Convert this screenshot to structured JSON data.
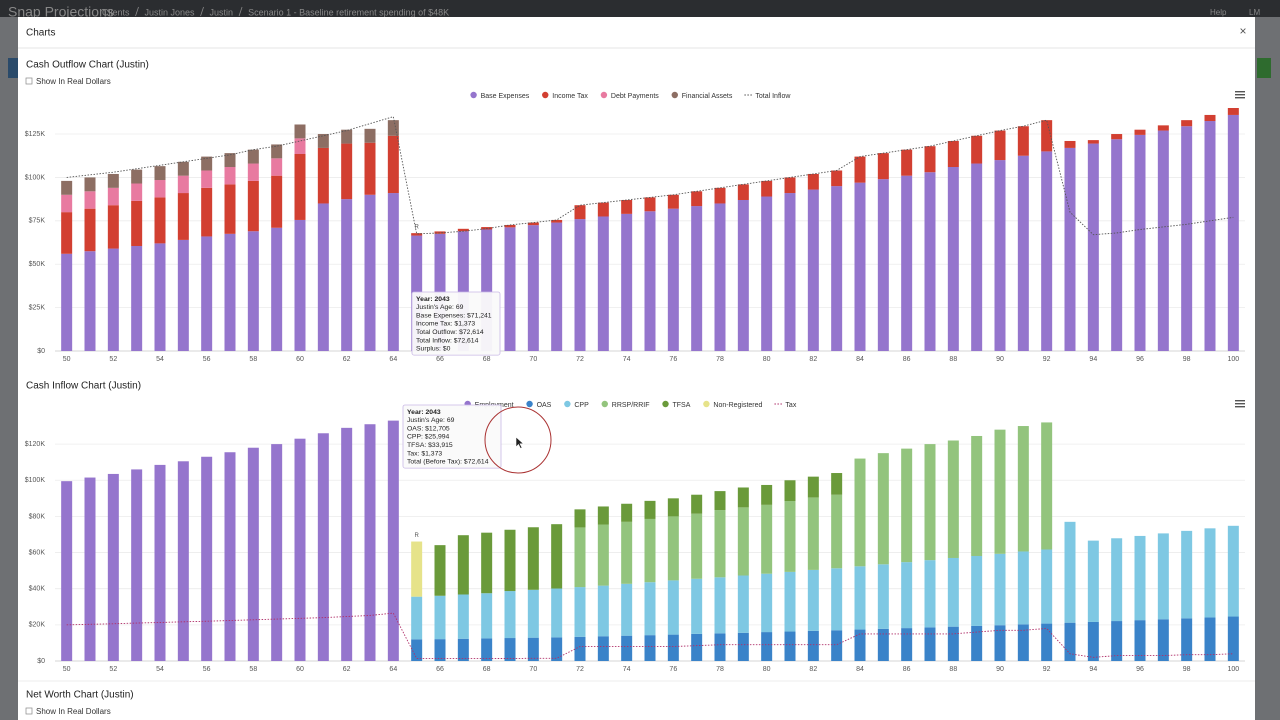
{
  "header": {
    "brand": "Snap Projections",
    "breadcrumb": [
      "Clients",
      "Justin Jones",
      "Justin",
      "Scenario 1 - Baseline retirement spending of $48K"
    ],
    "help": "Help",
    "user": "LM"
  },
  "modal": {
    "title": "Charts",
    "close": "×",
    "net_worth_title": "Net Worth Chart (Justin)",
    "net_worth_checkbox": "Show In Real Dollars"
  },
  "chart_data": [
    {
      "type": "bar",
      "stacked": true,
      "title": "Cash Outflow Chart (Justin)",
      "checkbox_label": "Show In Real Dollars",
      "categories": [
        50,
        null,
        52,
        null,
        54,
        null,
        56,
        null,
        58,
        null,
        60,
        null,
        62,
        null,
        64,
        null,
        66,
        null,
        68,
        null,
        70,
        null,
        72,
        null,
        74,
        null,
        76,
        null,
        78,
        null,
        80,
        null,
        82,
        null,
        84,
        null,
        86,
        null,
        88,
        null,
        90,
        null,
        92,
        null,
        94,
        null,
        96,
        null,
        98,
        null,
        100
      ],
      "ylim": [
        0,
        140000
      ],
      "yticks": [
        {
          "value": 0,
          "label": "$0"
        },
        {
          "value": 25000,
          "label": "$25K"
        },
        {
          "value": 50000,
          "label": "$50K"
        },
        {
          "value": 75000,
          "label": "$75K"
        },
        {
          "value": 100000,
          "label": "$100K"
        },
        {
          "value": 125000,
          "label": "$125K"
        }
      ],
      "grid": true,
      "legend": "top",
      "annotations": [
        "R"
      ],
      "series": [
        {
          "name": "Base Expenses",
          "color": "#9575cd",
          "values": [
            56000,
            57500,
            59000,
            60500,
            62000,
            64000,
            66000,
            67500,
            69000,
            71000,
            75500,
            85000,
            87500,
            90000,
            91000,
            66500,
            67500,
            69000,
            70000,
            71241,
            72500,
            74000,
            76000,
            77500,
            79000,
            80500,
            82000,
            83500,
            85000,
            87000,
            89000,
            91000,
            93000,
            95000,
            97000,
            99000,
            101000,
            103000,
            106000,
            108000,
            110000,
            112500,
            115000,
            117000,
            119500,
            122000,
            124500,
            127000,
            129500,
            132500,
            136000
          ]
        },
        {
          "name": "Income Tax",
          "color": "#d23f31",
          "values": [
            24000,
            24500,
            25000,
            26000,
            26500,
            27000,
            28000,
            28500,
            29000,
            30000,
            38000,
            32000,
            32000,
            30000,
            33000,
            1400,
            1400,
            1400,
            1400,
            1373,
            1500,
            1500,
            8000,
            8000,
            8000,
            8000,
            8000,
            8500,
            9000,
            9000,
            9000,
            9000,
            9000,
            9000,
            15000,
            15000,
            15000,
            15000,
            15000,
            16000,
            17000,
            17000,
            18000,
            4000,
            2000,
            3000,
            3000,
            3000,
            3500,
            3500,
            4000
          ]
        },
        {
          "name": "Debt Payments",
          "color": "#e87aa0",
          "values": [
            10000,
            10000,
            10000,
            10000,
            10000,
            10000,
            10000,
            10000,
            10000,
            10000,
            9000,
            0,
            0,
            0,
            0,
            0,
            0,
            0,
            0,
            0,
            0,
            0,
            0,
            0,
            0,
            0,
            0,
            0,
            0,
            0,
            0,
            0,
            0,
            0,
            0,
            0,
            0,
            0,
            0,
            0,
            0,
            0,
            0,
            0,
            0,
            0,
            0,
            0,
            0,
            0,
            0
          ]
        },
        {
          "name": "Financial Assets",
          "color": "#8d6e63",
          "values": [
            8000,
            8000,
            8000,
            8000,
            8000,
            8000,
            8000,
            8000,
            8000,
            8000,
            8000,
            8000,
            8000,
            8000,
            9000,
            0,
            0,
            0,
            0,
            0,
            0,
            0,
            0,
            0,
            0,
            0,
            0,
            0,
            0,
            0,
            0,
            0,
            0,
            0,
            0,
            0,
            0,
            0,
            0,
            0,
            0,
            0,
            0,
            0,
            0,
            0,
            0,
            0,
            0,
            0,
            0
          ]
        },
        {
          "name": "Total Inflow",
          "color": "#555555",
          "type": "line",
          "values": [
            100000,
            101500,
            103000,
            105000,
            107000,
            109000,
            111000,
            113000,
            116000,
            118000,
            121000,
            124000,
            127000,
            131000,
            135000,
            67500,
            68000,
            69000,
            70500,
            72614,
            74000,
            75500,
            84000,
            85500,
            87000,
            88500,
            90000,
            92000,
            94000,
            96000,
            98000,
            100000,
            102000,
            104000,
            112000,
            114000,
            116000,
            118000,
            121000,
            124000,
            127000,
            129500,
            133000,
            80000,
            67000,
            68000,
            70000,
            71500,
            73000,
            75000,
            77000
          ]
        }
      ],
      "tooltip": [
        "Year: 2043",
        "Justin's Age: 69",
        "Base Expenses: $71,241",
        "Income Tax: $1,373",
        "Total Outflow: $72,614",
        "Total Inflow: $72,614",
        "Surplus: $0"
      ]
    },
    {
      "type": "bar",
      "stacked": true,
      "title": "Cash Inflow Chart (Justin)",
      "categories": [
        50,
        null,
        52,
        null,
        54,
        null,
        56,
        null,
        58,
        null,
        60,
        null,
        62,
        null,
        64,
        null,
        66,
        null,
        68,
        null,
        70,
        null,
        72,
        null,
        74,
        null,
        76,
        null,
        78,
        null,
        80,
        null,
        82,
        null,
        84,
        null,
        86,
        null,
        88,
        null,
        90,
        null,
        92,
        null,
        94,
        null,
        96,
        null,
        98,
        null,
        100
      ],
      "ylim": [
        0,
        135000
      ],
      "yticks": [
        {
          "value": 0,
          "label": "$0"
        },
        {
          "value": 20000,
          "label": "$20K"
        },
        {
          "value": 40000,
          "label": "$40K"
        },
        {
          "value": 60000,
          "label": "$60K"
        },
        {
          "value": 80000,
          "label": "$80K"
        },
        {
          "value": 100000,
          "label": "$100K"
        },
        {
          "value": 120000,
          "label": "$120K"
        }
      ],
      "grid": true,
      "legend": "top",
      "annotations": [
        "R"
      ],
      "series": [
        {
          "name": "Employment",
          "color": "#9575cd",
          "values": [
            99500,
            101500,
            103500,
            106000,
            108500,
            110500,
            113000,
            115500,
            118000,
            120000,
            123000,
            126000,
            129000,
            131000,
            133000,
            0,
            0,
            0,
            0,
            0,
            0,
            0,
            0,
            0,
            0,
            0,
            0,
            0,
            0,
            0,
            0,
            0,
            0,
            0,
            0,
            0,
            0,
            0,
            0,
            0,
            0,
            0,
            0,
            0,
            0,
            0,
            0,
            0,
            0,
            0,
            0
          ]
        },
        {
          "name": "OAS",
          "color": "#3a83c9",
          "values": [
            0,
            0,
            0,
            0,
            0,
            0,
            0,
            0,
            0,
            0,
            0,
            0,
            0,
            0,
            0,
            12000,
            12100,
            12300,
            12500,
            12705,
            12900,
            13100,
            13400,
            13700,
            14000,
            14300,
            14600,
            15000,
            15300,
            15600,
            16000,
            16300,
            16700,
            17000,
            17400,
            17800,
            18200,
            18600,
            19000,
            19400,
            19800,
            20300,
            20700,
            21200,
            21600,
            22100,
            22600,
            23100,
            23600,
            24100,
            24600
          ]
        },
        {
          "name": "CPP",
          "color": "#7ec8e3",
          "values": [
            0,
            0,
            0,
            0,
            0,
            0,
            0,
            0,
            0,
            0,
            0,
            0,
            0,
            0,
            0,
            23600,
            24000,
            24500,
            25000,
            25994,
            26500,
            27000,
            27500,
            28000,
            28700,
            29300,
            30000,
            30500,
            31000,
            31700,
            32300,
            33000,
            33700,
            34300,
            35000,
            35700,
            36500,
            37200,
            38000,
            38700,
            39500,
            40300,
            41000,
            55800,
            45000,
            45800,
            46600,
            47500,
            48400,
            49300,
            50200
          ]
        },
        {
          "name": "RRSP/RRIF",
          "color": "#93c47d",
          "values": [
            0,
            0,
            0,
            0,
            0,
            0,
            0,
            0,
            0,
            0,
            0,
            0,
            0,
            0,
            0,
            0,
            0,
            0,
            0,
            0,
            0,
            0,
            33000,
            33800,
            34300,
            35000,
            35400,
            36000,
            37200,
            37700,
            38100,
            39200,
            40100,
            40700,
            59600,
            61500,
            62800,
            64200,
            65000,
            66400,
            68700,
            69400,
            70300,
            0,
            0,
            0,
            0,
            0,
            0,
            0,
            0
          ]
        },
        {
          "name": "TFSA",
          "color": "#6a9a3a",
          "values": [
            0,
            0,
            0,
            0,
            0,
            0,
            0,
            0,
            0,
            0,
            0,
            0,
            0,
            0,
            0,
            0,
            28000,
            32800,
            33500,
            33915,
            34600,
            35600,
            10000,
            10000,
            10000,
            10000,
            10000,
            10500,
            10500,
            11000,
            11000,
            11500,
            11500,
            12000,
            0,
            0,
            0,
            0,
            0,
            0,
            0,
            0,
            0,
            0,
            0,
            0,
            0,
            0,
            0,
            0,
            0
          ]
        },
        {
          "name": "Non-Registered",
          "color": "#e6e38a",
          "values": [
            0,
            0,
            0,
            0,
            0,
            0,
            0,
            0,
            0,
            0,
            0,
            0,
            0,
            0,
            0,
            30500,
            0,
            0,
            0,
            0,
            0,
            0,
            0,
            0,
            0,
            0,
            0,
            0,
            0,
            0,
            0,
            0,
            0,
            0,
            0,
            0,
            0,
            0,
            0,
            0,
            0,
            0,
            0,
            0,
            0,
            0,
            0,
            0,
            0,
            0,
            0
          ]
        },
        {
          "name": "Tax",
          "color": "#b0306a",
          "type": "line",
          "values": [
            20000,
            20300,
            20600,
            21000,
            21300,
            21700,
            22000,
            22400,
            22800,
            23200,
            23600,
            24000,
            24600,
            25200,
            26500,
            1400,
            1400,
            1400,
            1400,
            1373,
            1500,
            1500,
            8000,
            8000,
            8000,
            8000,
            8000,
            8500,
            9000,
            9000,
            9000,
            9000,
            9000,
            9000,
            15000,
            15000,
            15000,
            15000,
            15000,
            16000,
            17000,
            17000,
            18000,
            4000,
            2000,
            3000,
            3000,
            3000,
            3500,
            3500,
            4000
          ]
        }
      ],
      "tooltip": [
        "Year: 2043",
        "Justin's Age: 69",
        "OAS: $12,705",
        "CPP: $25,994",
        "TFSA: $33,915",
        "Tax: $1,373",
        "Total (Before Tax): $72,614"
      ]
    }
  ]
}
